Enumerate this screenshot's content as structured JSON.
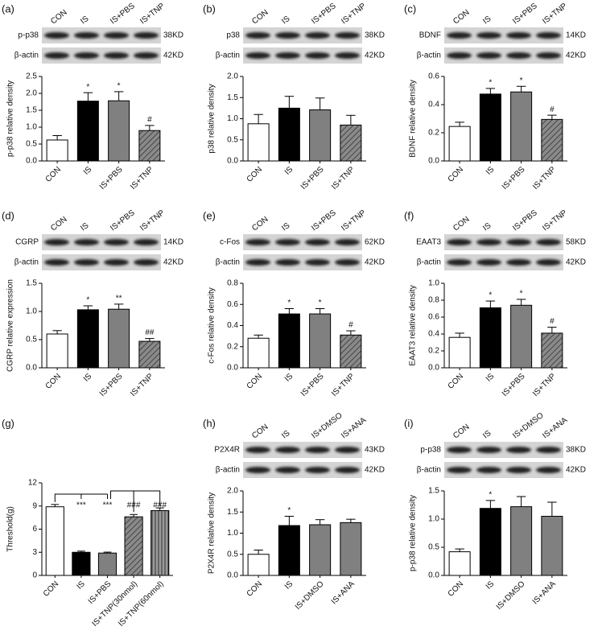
{
  "chart_data": [
    {
      "type": "bar",
      "panel": "(a)",
      "ylabel": "p-p38 relative density",
      "blot": {
        "lanes": [
          "CON",
          "IS",
          "IS+PBS",
          "IS+TNP"
        ],
        "rows": [
          {
            "name": "p-p38",
            "size": "38KD"
          },
          {
            "name": "β-actin",
            "size": "42KD"
          }
        ]
      },
      "categories": [
        "CON",
        "IS",
        "IS+PBS",
        "IS+TNP"
      ],
      "values": [
        0.62,
        1.77,
        1.78,
        0.9
      ],
      "errors": [
        0.13,
        0.25,
        0.27,
        0.15
      ],
      "annotations": [
        null,
        "*",
        "*",
        "#"
      ],
      "fills": [
        "open",
        "solid",
        "gray",
        "hatched"
      ],
      "ylim": [
        0,
        2.5
      ],
      "yticks": [
        {
          "value": 0,
          "label": "0.0"
        },
        0.5,
        {
          "value": 1,
          "label": "1.0"
        },
        1.5,
        {
          "value": 2,
          "label": "2.0"
        },
        2.5
      ]
    },
    {
      "type": "bar",
      "panel": "(b)",
      "ylabel": "p38 relative density",
      "blot": {
        "lanes": [
          "CON",
          "IS",
          "IS+PBS",
          "IS+TNP"
        ],
        "rows": [
          {
            "name": "p38",
            "size": "38KD"
          },
          {
            "name": "β-actin",
            "size": "42KD"
          }
        ]
      },
      "categories": [
        "CON",
        "IS",
        "IS+PBS",
        "IS+TNP"
      ],
      "values": [
        0.88,
        1.25,
        1.21,
        0.85
      ],
      "errors": [
        0.22,
        0.28,
        0.28,
        0.23
      ],
      "annotations": [
        null,
        null,
        null,
        null
      ],
      "fills": [
        "open",
        "solid",
        "gray",
        "hatched"
      ],
      "ylim": [
        0,
        2
      ],
      "yticks": [
        {
          "value": 0,
          "label": "0.0"
        },
        0.5,
        {
          "value": 1,
          "label": "1.0"
        },
        1.5,
        {
          "value": 2,
          "label": "2.0"
        }
      ]
    },
    {
      "type": "bar",
      "panel": "(c)",
      "ylabel": "BDNF relative density",
      "blot": {
        "lanes": [
          "CON",
          "IS",
          "IS+PBS",
          "IS+TNP"
        ],
        "rows": [
          {
            "name": "BDNF",
            "size": "14KD"
          },
          {
            "name": "β-actin",
            "size": "42KD"
          }
        ]
      },
      "categories": [
        "CON",
        "IS",
        "IS+PBS",
        "IS+TNP"
      ],
      "values": [
        0.245,
        0.475,
        0.49,
        0.295
      ],
      "errors": [
        0.03,
        0.04,
        0.04,
        0.03
      ],
      "annotations": [
        null,
        "*",
        "*",
        "#"
      ],
      "fills": [
        "open",
        "solid",
        "gray",
        "hatched"
      ],
      "ylim": [
        0,
        0.6
      ],
      "yticks": [
        {
          "value": 0,
          "label": "0.0"
        },
        0.2,
        0.4,
        0.6
      ]
    },
    {
      "type": "bar",
      "panel": "(d)",
      "ylabel": "CGRP relative expression",
      "blot": {
        "lanes": [
          "CON",
          "IS",
          "IS+PBS",
          "IS+TNP"
        ],
        "rows": [
          {
            "name": "CGRP",
            "size": "14KD"
          },
          {
            "name": "β-actin",
            "size": "42KD"
          }
        ]
      },
      "categories": [
        "CON",
        "IS",
        "IS+PBS",
        "IS+TNP"
      ],
      "values": [
        0.6,
        1.03,
        1.04,
        0.47
      ],
      "errors": [
        0.06,
        0.07,
        0.09,
        0.05
      ],
      "annotations": [
        null,
        "*",
        "**",
        "##"
      ],
      "fills": [
        "open",
        "solid",
        "gray",
        "hatched"
      ],
      "ylim": [
        0,
        1.5
      ],
      "yticks": [
        {
          "value": 0,
          "label": "0.0"
        },
        0.5,
        {
          "value": 1,
          "label": "1.0"
        },
        1.5
      ]
    },
    {
      "type": "bar",
      "panel": "(e)",
      "ylabel": "c-Fos relative density",
      "blot": {
        "lanes": [
          "CON",
          "IS",
          "IS+PBS",
          "IS+TNP"
        ],
        "rows": [
          {
            "name": "c-Fos",
            "size": "62KD"
          },
          {
            "name": "β-actin",
            "size": "42KD"
          }
        ]
      },
      "categories": [
        "CON",
        "IS",
        "IS+PBS",
        "IS+TNP"
      ],
      "values": [
        0.28,
        0.51,
        0.51,
        0.31
      ],
      "errors": [
        0.03,
        0.05,
        0.05,
        0.04
      ],
      "annotations": [
        null,
        "*",
        "*",
        "#"
      ],
      "fills": [
        "open",
        "solid",
        "gray",
        "hatched"
      ],
      "ylim": [
        0,
        0.8
      ],
      "yticks": [
        {
          "value": 0,
          "label": "0.0"
        },
        0.2,
        0.4,
        0.6,
        0.8
      ]
    },
    {
      "type": "bar",
      "panel": "(f)",
      "ylabel": "EAAT3 relative density",
      "blot": {
        "lanes": [
          "CON",
          "IS",
          "IS+PBS",
          "IS+TNP"
        ],
        "rows": [
          {
            "name": "EAAT3",
            "size": "58KD"
          },
          {
            "name": "β-actin",
            "size": "42KD"
          }
        ]
      },
      "categories": [
        "CON",
        "IS",
        "IS+PBS",
        "IS+TNP"
      ],
      "values": [
        0.36,
        0.71,
        0.74,
        0.41
      ],
      "errors": [
        0.05,
        0.08,
        0.07,
        0.07
      ],
      "annotations": [
        null,
        "*",
        "*",
        "#"
      ],
      "fills": [
        "open",
        "solid",
        "gray",
        "hatched"
      ],
      "ylim": [
        0,
        1
      ],
      "yticks": [
        {
          "value": 0,
          "label": "0.0"
        },
        0.2,
        0.4,
        0.6,
        0.8,
        {
          "value": 1,
          "label": "1.0"
        }
      ]
    },
    {
      "type": "bar",
      "panel": "(g)",
      "ylabel": "Threshold(g)",
      "categories": [
        "CON",
        "IS",
        "IS+PBS",
        "IS+TNP(30nmol)",
        "IS+TNP(60nmol)"
      ],
      "values": [
        8.9,
        3.0,
        2.9,
        7.6,
        8.4
      ],
      "errors": [
        0.3,
        0.15,
        0.12,
        0.3,
        0.35
      ],
      "annotations": [
        null,
        "***",
        "***",
        "###",
        "###"
      ],
      "fills": [
        "open",
        "solid",
        "gray",
        "hatched",
        "vlines"
      ],
      "ylim": [
        0,
        12
      ],
      "yticks": [
        0,
        3,
        6,
        9,
        12
      ]
    },
    {
      "type": "bar",
      "panel": "(h)",
      "ylabel": "P2X4R relative density",
      "blot": {
        "lanes": [
          "CON",
          "IS",
          "IS+DMSO",
          "IS+ANA"
        ],
        "rows": [
          {
            "name": "P2X4R",
            "size": "43KD"
          },
          {
            "name": "β-actin",
            "size": "42KD"
          }
        ]
      },
      "categories": [
        "CON",
        "IS",
        "IS+DMSO",
        "IS+ANA"
      ],
      "values": [
        0.5,
        1.18,
        1.2,
        1.25
      ],
      "errors": [
        0.1,
        0.22,
        0.12,
        0.08
      ],
      "annotations": [
        null,
        "*",
        null,
        null
      ],
      "fills": [
        "open",
        "solid",
        "gray",
        "gray"
      ],
      "ylim": [
        0,
        2
      ],
      "yticks": [
        {
          "value": 0,
          "label": "0.0"
        },
        0.5,
        {
          "value": 1,
          "label": "1.0"
        },
        1.5,
        {
          "value": 2,
          "label": "2.0"
        }
      ]
    },
    {
      "type": "bar",
      "panel": "(i)",
      "ylabel": "p-p38 relative density",
      "blot": {
        "lanes": [
          "CON",
          "IS",
          "IS+DMSO",
          "IS+ANA"
        ],
        "rows": [
          {
            "name": "p-p38",
            "size": "38KD"
          },
          {
            "name": "β-actin",
            "size": "42KD"
          }
        ]
      },
      "categories": [
        "CON",
        "IS",
        "IS+DMSO",
        "IS+ANA"
      ],
      "values": [
        0.42,
        1.19,
        1.22,
        1.05
      ],
      "errors": [
        0.05,
        0.14,
        0.18,
        0.25
      ],
      "annotations": [
        null,
        "*",
        null,
        null
      ],
      "fills": [
        "open",
        "solid",
        "gray",
        "gray"
      ],
      "ylim": [
        0,
        1.5
      ],
      "yticks": [
        {
          "value": 0,
          "label": "0.0"
        },
        0.5,
        {
          "value": 1,
          "label": "1.0"
        },
        1.5
      ]
    }
  ]
}
